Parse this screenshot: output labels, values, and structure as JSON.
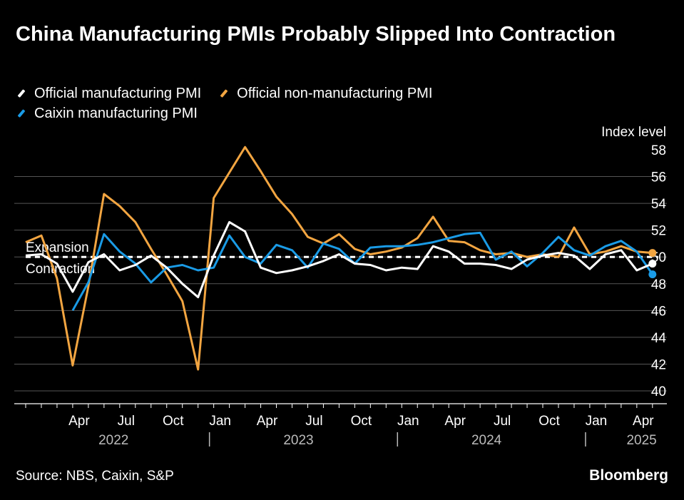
{
  "title": "China Manufacturing PMIs Probably Slipped Into Contraction",
  "legend": [
    {
      "label": "Official manufacturing PMI",
      "color": "#ffffff"
    },
    {
      "label": "Official non-manufacturing PMI",
      "color": "#f2a541"
    },
    {
      "label": "Caixin manufacturing PMI",
      "color": "#1a9be6"
    }
  ],
  "source": "Source: NBS, Caixin, S&P",
  "brand": "Bloomberg",
  "chart_data": {
    "type": "line",
    "ylabel": "Index level",
    "ylim": [
      40,
      58
    ],
    "yticks": [
      40,
      42,
      44,
      46,
      48,
      50,
      52,
      54,
      56,
      58
    ],
    "x": [
      "2022-01",
      "2022-02",
      "2022-03",
      "2022-04",
      "2022-05",
      "2022-06",
      "2022-07",
      "2022-08",
      "2022-09",
      "2022-10",
      "2022-11",
      "2022-12",
      "2023-01",
      "2023-02",
      "2023-03",
      "2023-04",
      "2023-05",
      "2023-06",
      "2023-07",
      "2023-08",
      "2023-09",
      "2023-10",
      "2023-11",
      "2023-12",
      "2024-01",
      "2024-02",
      "2024-03",
      "2024-04",
      "2024-05",
      "2024-06",
      "2024-07",
      "2024-08",
      "2024-09",
      "2024-10",
      "2024-11",
      "2024-12",
      "2025-01",
      "2025-02",
      "2025-03",
      "2025-04",
      "2025-05"
    ],
    "month_ticks": [
      "Apr",
      "Jul",
      "Oct",
      "Jan",
      "Apr",
      "Jul",
      "Oct",
      "Jan",
      "Apr",
      "Jul",
      "Oct",
      "Jan",
      "Apr"
    ],
    "year_labels": [
      "2022",
      "2023",
      "2024",
      "2025"
    ],
    "reference_line": {
      "value": 50,
      "label_above": "Expansion",
      "label_below": "Contraction"
    },
    "series": [
      {
        "name": "Official manufacturing PMI",
        "color": "#ffffff",
        "values": [
          50.1,
          50.2,
          49.5,
          47.4,
          49.6,
          50.2,
          49.0,
          49.4,
          50.1,
          49.2,
          48.0,
          47.0,
          50.1,
          52.6,
          51.9,
          49.2,
          48.8,
          49.0,
          49.3,
          49.7,
          50.2,
          49.5,
          49.4,
          49.0,
          49.2,
          49.1,
          50.8,
          50.4,
          49.5,
          49.5,
          49.4,
          49.1,
          49.8,
          50.1,
          50.3,
          50.1,
          49.1,
          50.2,
          50.5,
          49.0,
          49.5
        ]
      },
      {
        "name": "Official non-manufacturing PMI",
        "color": "#f2a541",
        "values": [
          51.1,
          51.6,
          48.4,
          41.9,
          47.8,
          54.7,
          53.8,
          52.6,
          50.6,
          48.7,
          46.7,
          41.6,
          54.4,
          56.3,
          58.2,
          56.4,
          54.5,
          53.2,
          51.5,
          51.0,
          51.7,
          50.6,
          50.2,
          50.4,
          50.7,
          51.4,
          53.0,
          51.2,
          51.1,
          50.5,
          50.2,
          50.3,
          50.0,
          50.2,
          50.0,
          52.2,
          50.2,
          50.4,
          50.8,
          50.4,
          50.3
        ]
      },
      {
        "name": "Caixin manufacturing PMI",
        "color": "#1a9be6",
        "values": [
          null,
          null,
          null,
          46.0,
          48.1,
          51.7,
          50.4,
          49.5,
          48.1,
          49.2,
          49.4,
          49.0,
          49.2,
          51.6,
          50.0,
          49.5,
          50.9,
          50.5,
          49.2,
          51.0,
          50.6,
          49.5,
          50.7,
          50.8,
          50.8,
          50.9,
          51.1,
          51.4,
          51.7,
          51.8,
          49.8,
          50.4,
          49.3,
          50.3,
          51.5,
          50.5,
          50.1,
          50.8,
          51.2,
          50.4,
          48.7
        ]
      }
    ]
  }
}
